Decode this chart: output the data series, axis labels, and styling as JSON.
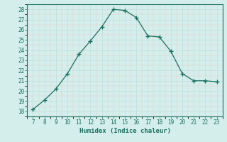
{
  "x": [
    7,
    8,
    9,
    10,
    11,
    12,
    13,
    14,
    15,
    16,
    17,
    18,
    19,
    20,
    21,
    22,
    23
  ],
  "y": [
    18.2,
    19.1,
    20.2,
    21.7,
    23.6,
    24.9,
    26.3,
    28.0,
    27.9,
    27.2,
    25.4,
    25.3,
    23.9,
    21.7,
    21.0,
    21.0,
    20.9
  ],
  "xlabel": "Humidex (Indice chaleur)",
  "ylim": [
    17.5,
    28.5
  ],
  "xlim": [
    6.5,
    23.5
  ],
  "yticks": [
    18,
    19,
    20,
    21,
    22,
    23,
    24,
    25,
    26,
    27,
    28
  ],
  "xticks": [
    7,
    8,
    9,
    10,
    11,
    12,
    13,
    14,
    15,
    16,
    17,
    18,
    19,
    20,
    21,
    22,
    23
  ],
  "line_color": "#1a7060",
  "marker_color": "#1a7060",
  "bg_color": "#d4eeeb",
  "grid_color": "#c0dedd",
  "axes_bg": "#d4eeeb"
}
